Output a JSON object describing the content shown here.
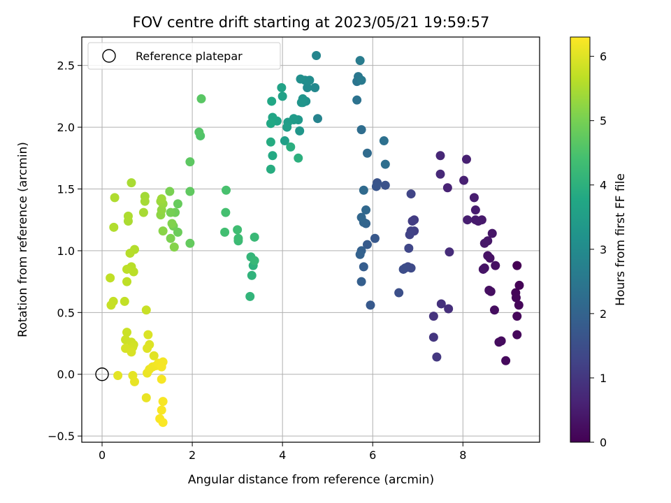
{
  "chart_data": {
    "type": "scatter",
    "title": "FOV centre drift starting at 2023/05/21 19:59:57",
    "xlabel": "Angular distance from reference (arcmin)",
    "ylabel": "Rotation from reference (arcmin)",
    "xlim": [
      -0.45,
      9.7
    ],
    "ylim": [
      -0.55,
      2.73
    ],
    "x_ticks": [
      0,
      2,
      4,
      6,
      8
    ],
    "y_ticks": [
      -0.5,
      0.0,
      0.5,
      1.0,
      1.5,
      2.0,
      2.5
    ],
    "x_tick_labels": [
      "0",
      "2",
      "4",
      "6",
      "8"
    ],
    "y_tick_labels": [
      "−0.5",
      "0.0",
      "0.5",
      "1.0",
      "1.5",
      "2.0",
      "2.5"
    ],
    "grid": true,
    "legend": {
      "position": "top-left",
      "entries": [
        "Reference platepar"
      ]
    },
    "reference_point": {
      "x": 0.0,
      "y": 0.0
    },
    "colorbar": {
      "label": "Hours from first FF file",
      "range": [
        0,
        6.3
      ],
      "ticks": [
        0,
        1,
        2,
        3,
        4,
        5,
        6
      ],
      "tick_labels": [
        "0",
        "1",
        "2",
        "3",
        "4",
        "5",
        "6"
      ],
      "colormap": "viridis"
    },
    "points": [
      [
        9.2,
        0.88,
        0.0
      ],
      [
        9.25,
        0.72,
        0.03
      ],
      [
        9.17,
        0.66,
        0.05
      ],
      [
        9.18,
        0.62,
        0.07
      ],
      [
        9.24,
        0.56,
        0.09
      ],
      [
        9.2,
        0.47,
        0.11
      ],
      [
        9.2,
        0.32,
        0.13
      ],
      [
        8.95,
        0.11,
        0.15
      ],
      [
        8.85,
        0.27,
        0.17
      ],
      [
        8.8,
        0.26,
        0.19
      ],
      [
        8.7,
        0.52,
        0.21
      ],
      [
        8.62,
        0.67,
        0.23
      ],
      [
        8.58,
        0.68,
        0.25
      ],
      [
        8.72,
        0.88,
        0.27
      ],
      [
        8.6,
        0.94,
        0.29
      ],
      [
        8.55,
        0.96,
        0.31
      ],
      [
        8.48,
        0.86,
        0.33
      ],
      [
        8.45,
        0.85,
        0.35
      ],
      [
        8.65,
        1.14,
        0.37
      ],
      [
        8.55,
        1.08,
        0.39
      ],
      [
        8.48,
        1.06,
        0.41
      ],
      [
        8.42,
        1.25,
        0.43
      ],
      [
        8.34,
        1.24,
        0.45
      ],
      [
        8.28,
        1.25,
        0.47
      ],
      [
        8.28,
        1.33,
        0.49
      ],
      [
        8.25,
        1.43,
        0.51
      ],
      [
        8.1,
        1.25,
        0.53
      ],
      [
        8.08,
        1.74,
        0.55
      ],
      [
        8.02,
        1.57,
        0.57
      ],
      [
        7.66,
        1.51,
        0.62
      ],
      [
        7.5,
        1.77,
        0.68
      ],
      [
        7.5,
        1.62,
        0.72
      ],
      [
        7.7,
        0.99,
        0.78
      ],
      [
        7.68,
        0.53,
        0.84
      ],
      [
        7.52,
        0.57,
        0.88
      ],
      [
        7.35,
        0.47,
        0.94
      ],
      [
        7.35,
        0.3,
        0.98
      ],
      [
        7.42,
        0.14,
        1.02
      ],
      [
        6.92,
        1.25,
        1.08
      ],
      [
        6.88,
        1.24,
        1.12
      ],
      [
        6.92,
        1.16,
        1.16
      ],
      [
        6.85,
        1.16,
        1.2
      ],
      [
        6.82,
        1.13,
        1.24
      ],
      [
        6.85,
        1.46,
        1.28
      ],
      [
        6.8,
        1.02,
        1.32
      ],
      [
        6.78,
        0.87,
        1.36
      ],
      [
        6.85,
        0.86,
        1.4
      ],
      [
        6.72,
        0.86,
        1.44
      ],
      [
        6.68,
        0.85,
        1.48
      ],
      [
        6.58,
        0.66,
        1.52
      ],
      [
        6.28,
        1.53,
        1.58
      ],
      [
        6.1,
        1.55,
        1.62
      ],
      [
        6.08,
        1.52,
        1.66
      ],
      [
        6.05,
        1.1,
        1.72
      ],
      [
        5.95,
        0.56,
        1.76
      ],
      [
        5.88,
        1.05,
        1.8
      ],
      [
        5.8,
        0.87,
        1.84
      ],
      [
        5.75,
        0.75,
        1.88
      ],
      [
        5.75,
        1.0,
        1.92
      ],
      [
        5.72,
        0.97,
        1.96
      ],
      [
        5.85,
        1.22,
        2.0
      ],
      [
        5.8,
        1.23,
        2.04
      ],
      [
        5.75,
        1.27,
        2.08
      ],
      [
        5.85,
        1.33,
        2.12
      ],
      [
        5.8,
        1.49,
        2.16
      ],
      [
        5.88,
        1.79,
        2.2
      ],
      [
        5.75,
        1.98,
        2.24
      ],
      [
        6.28,
        1.7,
        2.28
      ],
      [
        6.25,
        1.89,
        2.32
      ],
      [
        5.65,
        2.22,
        2.38
      ],
      [
        5.65,
        2.37,
        2.44
      ],
      [
        5.68,
        2.41,
        2.5
      ],
      [
        5.75,
        2.38,
        2.56
      ],
      [
        5.72,
        2.54,
        2.62
      ],
      [
        4.78,
        2.07,
        2.8
      ],
      [
        4.75,
        2.58,
        2.86
      ],
      [
        4.72,
        2.32,
        2.92
      ],
      [
        4.55,
        2.32,
        2.98
      ],
      [
        4.6,
        2.38,
        3.02
      ],
      [
        4.5,
        2.38,
        3.06
      ],
      [
        4.4,
        2.39,
        3.1
      ],
      [
        4.52,
        2.21,
        3.14
      ],
      [
        4.45,
        2.2,
        3.18
      ],
      [
        4.45,
        2.23,
        3.22
      ],
      [
        4.42,
        2.2,
        3.26
      ],
      [
        4.38,
        1.97,
        3.3
      ],
      [
        4.35,
        2.06,
        3.34
      ],
      [
        4.25,
        2.06,
        3.38
      ],
      [
        4.25,
        2.07,
        3.42
      ],
      [
        4.12,
        2.04,
        3.46
      ],
      [
        4.1,
        2.0,
        3.5
      ],
      [
        4.05,
        1.89,
        3.54
      ],
      [
        4.0,
        2.25,
        3.58
      ],
      [
        3.98,
        2.32,
        3.62
      ],
      [
        3.88,
        2.05,
        3.66
      ],
      [
        3.78,
        2.08,
        3.7
      ],
      [
        3.76,
        2.21,
        3.74
      ],
      [
        3.74,
        2.03,
        3.78
      ],
      [
        3.78,
        1.77,
        3.82
      ],
      [
        3.74,
        1.88,
        3.86
      ],
      [
        3.74,
        1.66,
        3.9
      ],
      [
        4.18,
        1.84,
        3.94
      ],
      [
        4.35,
        1.75,
        3.98
      ],
      [
        3.35,
        0.88,
        4.02
      ],
      [
        3.32,
        0.8,
        4.06
      ],
      [
        3.28,
        0.63,
        4.1
      ],
      [
        3.3,
        0.95,
        4.14
      ],
      [
        3.38,
        0.92,
        4.18
      ],
      [
        3.38,
        1.11,
        4.22
      ],
      [
        3.02,
        1.08,
        4.26
      ],
      [
        3.02,
        1.1,
        4.3
      ],
      [
        3.0,
        1.17,
        4.34
      ],
      [
        2.72,
        1.15,
        4.38
      ],
      [
        2.74,
        1.31,
        4.42
      ],
      [
        2.75,
        1.49,
        4.46
      ],
      [
        2.18,
        1.93,
        4.55
      ],
      [
        2.15,
        1.96,
        4.6
      ],
      [
        2.2,
        2.23,
        4.65
      ],
      [
        1.95,
        1.72,
        4.7
      ],
      [
        1.95,
        1.48,
        4.74
      ],
      [
        1.95,
        1.06,
        4.78
      ],
      [
        1.68,
        1.38,
        4.82
      ],
      [
        1.68,
        1.15,
        4.86
      ],
      [
        1.62,
        1.31,
        4.9
      ],
      [
        1.58,
        1.2,
        4.94
      ],
      [
        1.52,
        1.31,
        4.98
      ],
      [
        1.5,
        1.48,
        5.02
      ],
      [
        1.52,
        1.1,
        5.06
      ],
      [
        1.55,
        1.22,
        5.1
      ],
      [
        1.6,
        1.03,
        5.14
      ],
      [
        1.35,
        1.16,
        5.18
      ],
      [
        1.3,
        1.29,
        5.22
      ],
      [
        1.32,
        1.33,
        5.26
      ],
      [
        1.35,
        1.38,
        5.3
      ],
      [
        1.3,
        1.4,
        5.34
      ],
      [
        1.32,
        1.42,
        5.38
      ],
      [
        0.95,
        1.44,
        5.42
      ],
      [
        0.95,
        1.4,
        5.44
      ],
      [
        0.92,
        1.31,
        5.46
      ],
      [
        0.65,
        1.55,
        5.48
      ],
      [
        0.58,
        1.24,
        5.5
      ],
      [
        0.58,
        1.28,
        5.52
      ],
      [
        0.28,
        1.43,
        5.54
      ],
      [
        0.26,
        1.19,
        5.56
      ],
      [
        0.72,
        1.01,
        5.58
      ],
      [
        0.62,
        0.98,
        5.6
      ],
      [
        0.65,
        0.87,
        5.62
      ],
      [
        0.7,
        0.83,
        5.64
      ],
      [
        0.55,
        0.85,
        5.66
      ],
      [
        0.55,
        0.75,
        5.68
      ],
      [
        0.18,
        0.78,
        5.7
      ],
      [
        0.5,
        0.59,
        5.72
      ],
      [
        0.25,
        0.59,
        5.74
      ],
      [
        0.2,
        0.56,
        5.76
      ],
      [
        0.98,
        0.52,
        5.78
      ],
      [
        0.55,
        0.34,
        5.8
      ],
      [
        0.52,
        0.28,
        5.82
      ],
      [
        0.65,
        0.26,
        5.84
      ],
      [
        0.7,
        0.24,
        5.86
      ],
      [
        0.68,
        0.22,
        5.88
      ],
      [
        0.62,
        0.2,
        5.9
      ],
      [
        0.52,
        0.21,
        5.92
      ],
      [
        0.65,
        0.18,
        5.94
      ],
      [
        1.02,
        0.32,
        5.96
      ],
      [
        1.05,
        0.24,
        5.98
      ],
      [
        1.0,
        0.21,
        6.0
      ],
      [
        1.15,
        0.15,
        6.02
      ],
      [
        0.35,
        -0.01,
        6.04
      ],
      [
        0.68,
        -0.01,
        6.06
      ],
      [
        0.72,
        -0.06,
        6.08
      ],
      [
        0.98,
        -0.19,
        6.1
      ],
      [
        1.0,
        0.01,
        6.12
      ],
      [
        1.05,
        0.04,
        6.14
      ],
      [
        1.12,
        0.06,
        6.16
      ],
      [
        1.2,
        0.07,
        6.18
      ],
      [
        1.25,
        0.09,
        6.2
      ],
      [
        1.35,
        0.1,
        6.21
      ],
      [
        1.32,
        0.06,
        6.22
      ],
      [
        1.32,
        -0.04,
        6.23
      ],
      [
        1.35,
        -0.22,
        6.24
      ],
      [
        1.32,
        -0.29,
        6.25
      ],
      [
        1.28,
        -0.36,
        6.26
      ],
      [
        1.35,
        -0.39,
        6.27
      ]
    ]
  }
}
